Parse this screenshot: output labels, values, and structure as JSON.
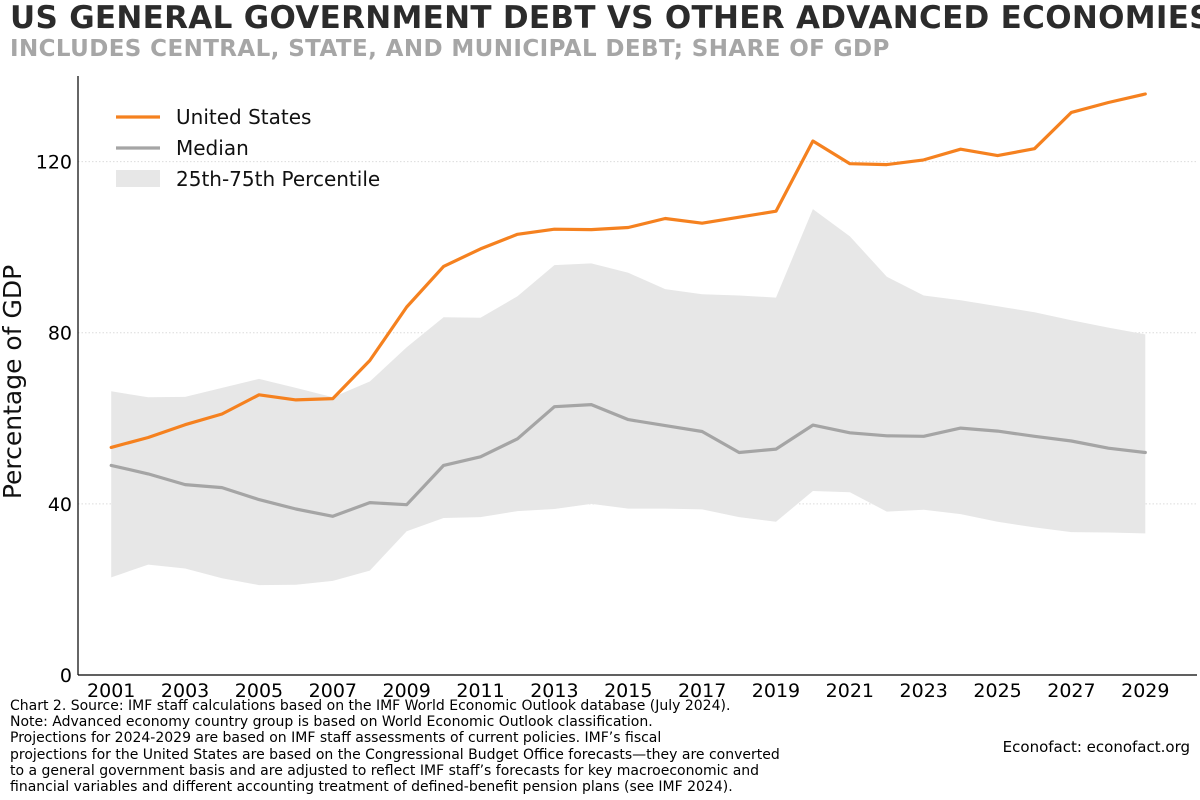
{
  "title": "US GENERAL GOVERNMENT DEBT VS OTHER ADVANCED ECONOMIES",
  "subtitle": "INCLUDES CENTRAL, STATE, AND MUNICIPAL DEBT; SHARE OF GDP",
  "colors": {
    "us_line": "#f5811f",
    "median_line": "#a5a5a5",
    "band_fill": "#e7e7e7",
    "grid": "#dcdcdc",
    "axis": "#000000"
  },
  "chart_data": {
    "type": "line",
    "title": "US GENERAL GOVERNMENT DEBT VS OTHER ADVANCED ECONOMIES",
    "xlabel": "",
    "ylabel": "Percentage of GDP",
    "xlim": [
      2000.1,
      2030.4
    ],
    "ylim": [
      0,
      140
    ],
    "x": [
      2001,
      2002,
      2003,
      2004,
      2005,
      2006,
      2007,
      2008,
      2009,
      2010,
      2011,
      2012,
      2013,
      2014,
      2015,
      2016,
      2017,
      2018,
      2019,
      2020,
      2021,
      2022,
      2023,
      2024,
      2025,
      2026,
      2027,
      2028,
      2029
    ],
    "xticks": [
      2001,
      2003,
      2005,
      2007,
      2009,
      2011,
      2013,
      2015,
      2017,
      2019,
      2021,
      2023,
      2025,
      2027,
      2029
    ],
    "yticks": [
      0,
      40,
      80,
      120
    ],
    "grid": "horizontal",
    "legend_position": "top-left",
    "series": [
      {
        "name": "United States",
        "type": "line",
        "values": [
          53.2,
          55.5,
          58.5,
          61.0,
          65.5,
          64.3,
          64.6,
          73.5,
          86.0,
          95.5,
          99.6,
          103.0,
          104.2,
          104.1,
          104.6,
          106.7,
          105.6,
          107.0,
          108.4,
          124.8,
          119.5,
          119.3,
          120.4,
          122.9,
          121.4,
          123.0,
          131.5,
          133.8,
          135.8
        ]
      },
      {
        "name": "Median",
        "type": "line",
        "values": [
          49.0,
          47.0,
          44.5,
          43.8,
          41.0,
          38.8,
          37.1,
          40.3,
          39.8,
          49.0,
          51.0,
          55.2,
          62.7,
          63.2,
          59.7,
          58.3,
          56.9,
          52.0,
          52.8,
          58.4,
          56.6,
          55.9,
          55.8,
          57.7,
          57.0,
          55.8,
          54.7,
          53.0,
          52.0
        ]
      },
      {
        "name": "25th-75th Percentile",
        "type": "band",
        "lower": [
          22.8,
          25.8,
          24.9,
          22.6,
          21.0,
          21.1,
          22.0,
          24.4,
          33.6,
          36.7,
          36.9,
          38.3,
          38.8,
          40.0,
          38.9,
          38.9,
          38.7,
          36.9,
          35.8,
          43.0,
          42.7,
          38.2,
          38.6,
          37.6,
          35.8,
          34.5,
          33.4,
          33.3,
          33.1
        ],
        "upper": [
          66.3,
          64.9,
          65.0,
          67.1,
          69.2,
          67.1,
          64.9,
          68.6,
          76.6,
          83.6,
          83.5,
          88.5,
          95.8,
          96.2,
          94.0,
          90.2,
          89.0,
          88.7,
          88.2,
          108.9,
          102.5,
          93.1,
          88.7,
          87.6,
          86.2,
          84.8,
          82.9,
          81.2,
          79.6
        ]
      }
    ]
  },
  "footer": {
    "lines": [
      "Chart 2. Source: IMF staff calculations based on the IMF World Economic Outlook database (July 2024).",
      "Note: Advanced economy country group is based on World Economic Outlook classification.",
      "Projections for 2024-2029 are based on IMF staff assessments of current policies. IMF’s fiscal",
      "projections for the United States are based on the Congressional Budget Office forecasts—they are converted",
      "to a general government basis and are adjusted to reflect IMF staff’s forecasts for key macroeconomic and",
      "financial variables and different accounting treatment of defined-benefit pension plans (see IMF 2024)."
    ],
    "credit": "Econofact: econofact.org"
  }
}
